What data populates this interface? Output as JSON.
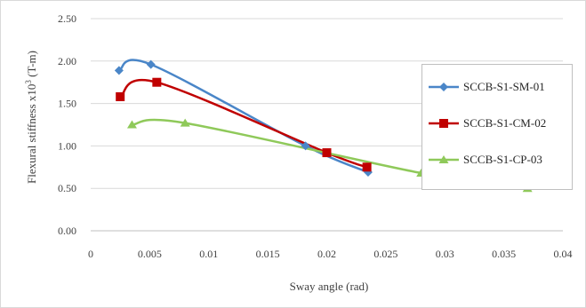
{
  "chart_data": {
    "type": "line",
    "title": "",
    "xlabel": "Sway angle (rad)",
    "ylabel_main": "Flexural stiffness x10",
    "ylabel_exp": "3",
    "ylabel_unit": " (T-m)",
    "xlim": [
      0,
      0.04
    ],
    "ylim": [
      0,
      2.5
    ],
    "x_ticks": [
      0,
      0.005,
      0.01,
      0.015,
      0.02,
      0.025,
      0.03,
      0.035,
      0.04
    ],
    "x_tick_labels": [
      "0",
      "0.005",
      "0.01",
      "0.015",
      "0.02",
      "0.025",
      "0.03",
      "0.035",
      "0.04"
    ],
    "y_ticks": [
      0,
      0.5,
      1.0,
      1.5,
      2.0,
      2.5
    ],
    "y_tick_labels": [
      "0.00",
      "0.50",
      "1.00",
      "1.50",
      "2.00",
      "2.50"
    ],
    "grid": "horizontal",
    "legend_position": "right",
    "series": [
      {
        "name": "SCCB-S1-SM-01",
        "color": "#4a86c8",
        "marker": "diamond",
        "x": [
          0.0024,
          0.0051,
          0.0182,
          0.0235
        ],
        "y": [
          1.89,
          1.96,
          1.0,
          0.69
        ]
      },
      {
        "name": "SCCB-S1-CM-02",
        "color": "#c00000",
        "marker": "square",
        "x": [
          0.0025,
          0.0056,
          0.02,
          0.0234
        ],
        "y": [
          1.58,
          1.75,
          0.92,
          0.75
        ]
      },
      {
        "name": "SCCB-S1-CP-03",
        "color": "#8fc95a",
        "marker": "triangle",
        "x": [
          0.0035,
          0.008,
          0.028,
          0.037
        ],
        "y": [
          1.25,
          1.27,
          0.68,
          0.5
        ]
      }
    ]
  }
}
